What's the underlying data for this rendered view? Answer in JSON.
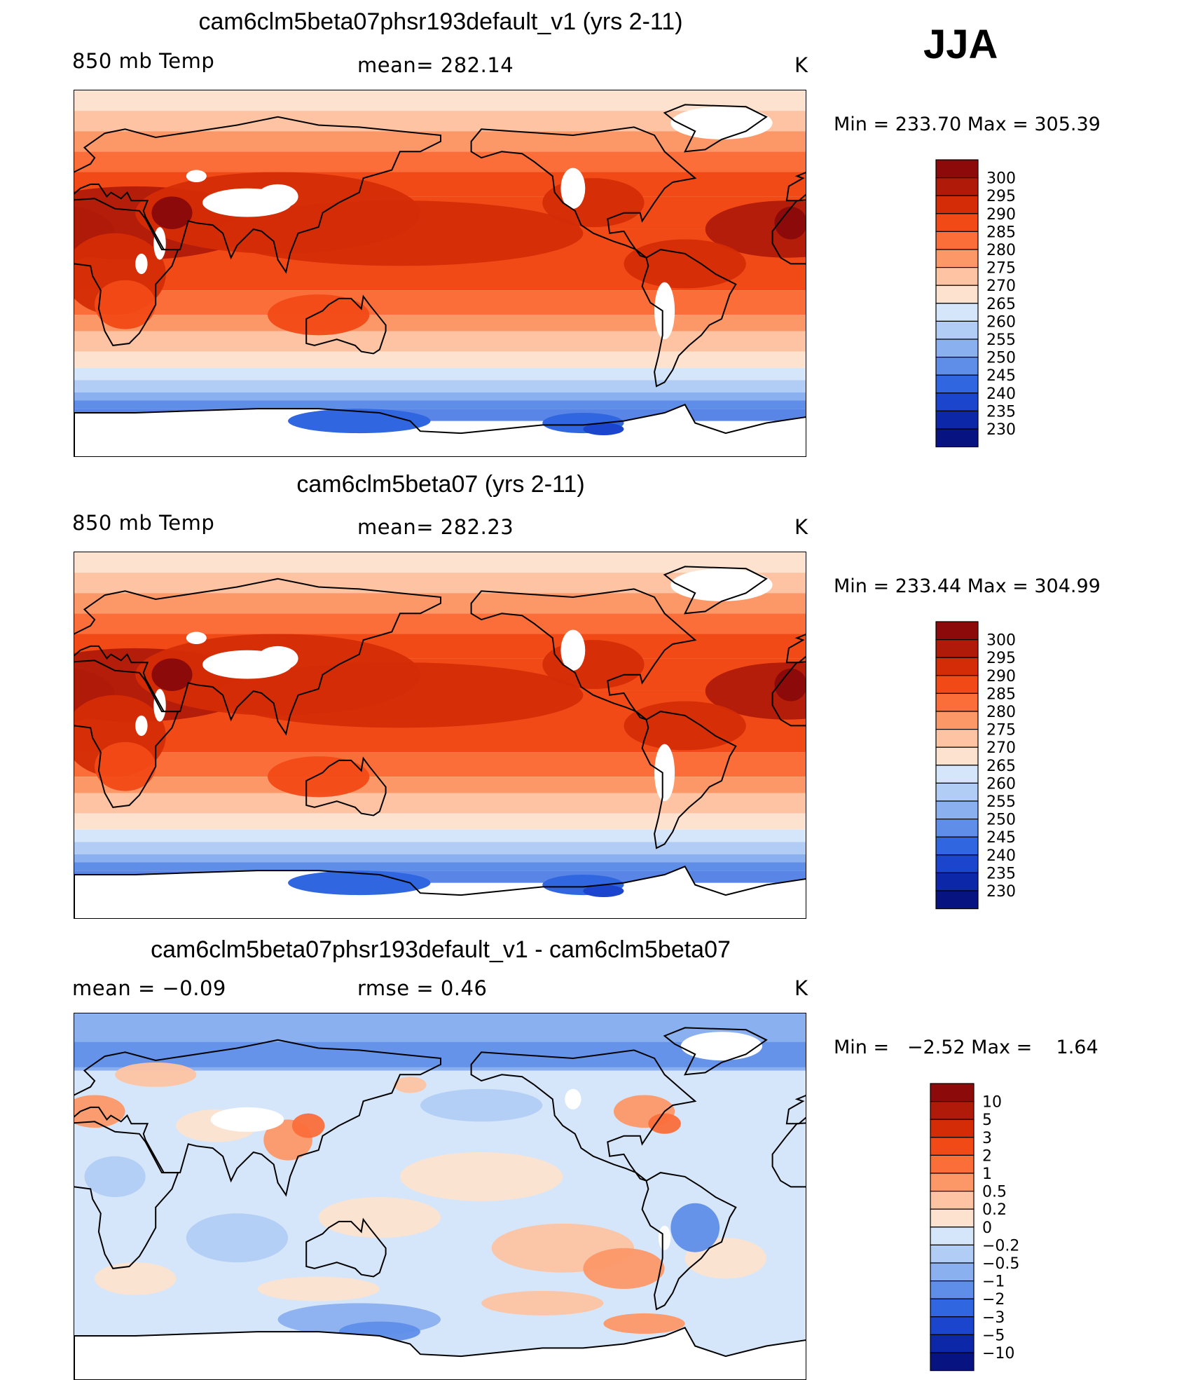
{
  "season": "JJA",
  "panels": [
    {
      "id": "case",
      "title": "cam6clm5beta07phsr193default_v1 (yrs 2-11)",
      "left_label": "850 mb Temp",
      "center_label": "mean= 282.14",
      "units": "K",
      "minmax": "Min = 233.70 Max = 305.39"
    },
    {
      "id": "control",
      "title": "cam6clm5beta07 (yrs 2-11)",
      "left_label": "850 mb Temp",
      "center_label": "mean= 282.23",
      "units": "K",
      "minmax": "Min = 233.44 Max = 304.99"
    },
    {
      "id": "difference",
      "title": "cam6clm5beta07phsr193default_v1 - cam6clm5beta07",
      "left_label": "mean =   −0.09",
      "center_label": "rmse =    0.46",
      "units": "K",
      "minmax": "Min =   −2.52 Max =    1.64"
    }
  ],
  "chart_data": [
    {
      "type": "heatmap",
      "title": "cam6clm5beta07phsr193default_v1 (yrs 2-11)",
      "variable": "850 mb Temp",
      "units": "K",
      "mean": 282.14,
      "min": 233.7,
      "max": 305.39,
      "contour_levels": [
        "300",
        "295",
        "290",
        "285",
        "280",
        "275",
        "270",
        "265",
        "260",
        "255",
        "250",
        "245",
        "240",
        "235",
        "230"
      ],
      "colors": [
        "#8c0a0a",
        "#b01a08",
        "#d42c06",
        "#f24a16",
        "#fb6e3a",
        "#fc9868",
        "#fdc3a2",
        "#fde3cf",
        "#d6e6fa",
        "#b1cdf6",
        "#8bb0f0",
        "#5e8ee8",
        "#3066e0",
        "#1b45cd",
        "#0c28a8",
        "#061380"
      ]
    },
    {
      "type": "heatmap",
      "title": "cam6clm5beta07 (yrs 2-11)",
      "variable": "850 mb Temp",
      "units": "K",
      "mean": 282.23,
      "min": 233.44,
      "max": 304.99,
      "contour_levels": [
        "300",
        "295",
        "290",
        "285",
        "280",
        "275",
        "270",
        "265",
        "260",
        "255",
        "250",
        "245",
        "240",
        "235",
        "230"
      ],
      "colors": [
        "#8c0a0a",
        "#b01a08",
        "#d42c06",
        "#f24a16",
        "#fb6e3a",
        "#fc9868",
        "#fdc3a2",
        "#fde3cf",
        "#d6e6fa",
        "#b1cdf6",
        "#8bb0f0",
        "#5e8ee8",
        "#3066e0",
        "#1b45cd",
        "#0c28a8",
        "#061380"
      ]
    },
    {
      "type": "heatmap",
      "title": "cam6clm5beta07phsr193default_v1 - cam6clm5beta07",
      "units": "K",
      "mean": -0.09,
      "rmse": 0.46,
      "min": -2.52,
      "max": 1.64,
      "contour_levels": [
        "10",
        "5",
        "3",
        "2",
        "1",
        "0.5",
        "0.2",
        "0",
        "−0.2",
        "−0.5",
        "−1",
        "−2",
        "−3",
        "−5",
        "−10"
      ],
      "colors": [
        "#8c0a0a",
        "#b01a08",
        "#d42c06",
        "#f24a16",
        "#fb6e3a",
        "#fc9868",
        "#fdc3a2",
        "#fde3cf",
        "#d6e6fa",
        "#b1cdf6",
        "#8bb0f0",
        "#5e8ee8",
        "#3066e0",
        "#1b45cd",
        "#0c28a8",
        "#061380"
      ]
    }
  ]
}
